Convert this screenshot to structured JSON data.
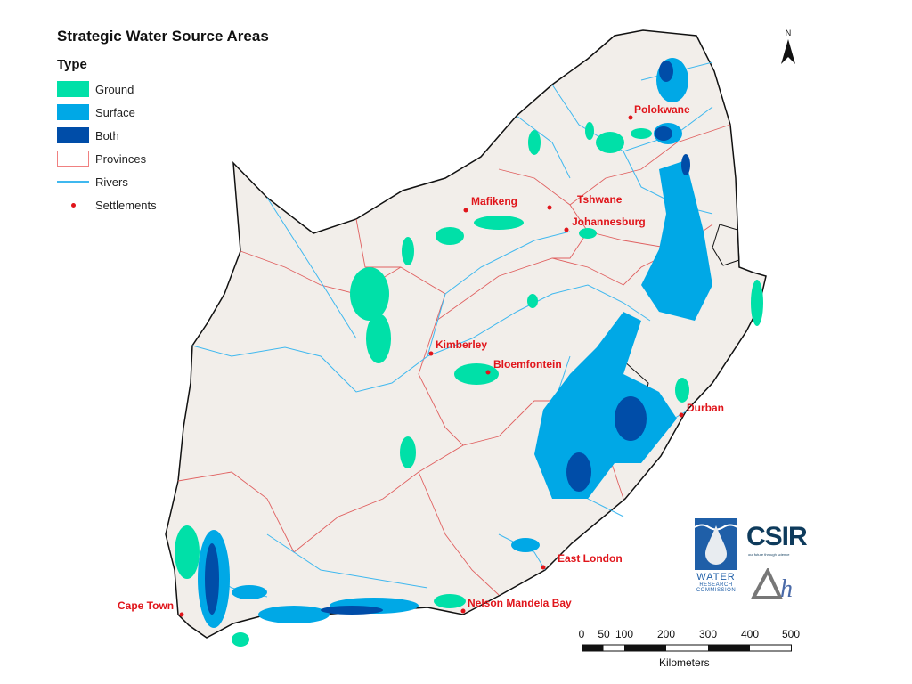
{
  "title": "Strategic Water Source Areas",
  "legend": {
    "heading": "Type",
    "items": [
      {
        "label": "Ground",
        "color": "#00e0a8",
        "kind": "fill"
      },
      {
        "label": "Surface",
        "color": "#00a8e6",
        "kind": "fill"
      },
      {
        "label": "Both",
        "color": "#004da8",
        "kind": "fill"
      },
      {
        "label": "Provinces",
        "color": "#f08080",
        "kind": "outline"
      },
      {
        "label": "Rivers",
        "color": "#3fb8ef",
        "kind": "line"
      },
      {
        "label": "Settlements",
        "color": "#e0151b",
        "kind": "dot"
      }
    ]
  },
  "settlements": [
    {
      "name": "Polokwane"
    },
    {
      "name": "Mafikeng"
    },
    {
      "name": "Tshwane"
    },
    {
      "name": "Johannesburg"
    },
    {
      "name": "Kimberley"
    },
    {
      "name": "Bloemfontein"
    },
    {
      "name": "Durban"
    },
    {
      "name": "East London"
    },
    {
      "name": "Nelson Mandela Bay"
    },
    {
      "name": "Cape Town"
    }
  ],
  "north_arrow": {
    "label": "N"
  },
  "scale_bar": {
    "ticks": [
      "0",
      "50",
      "100",
      "200",
      "300",
      "400",
      "500"
    ],
    "unit": "Kilometers"
  },
  "logos": {
    "wrc": {
      "line1": "WATER",
      "line2": "RESEARCH",
      "line3": "COMMISSION"
    },
    "csir": {
      "name": "CSIR",
      "tagline": "our future through science"
    },
    "dh": {
      "name": "Δh"
    }
  },
  "colors": {
    "land": "#f2eeea",
    "border": "#111111",
    "province": "#e06060"
  }
}
